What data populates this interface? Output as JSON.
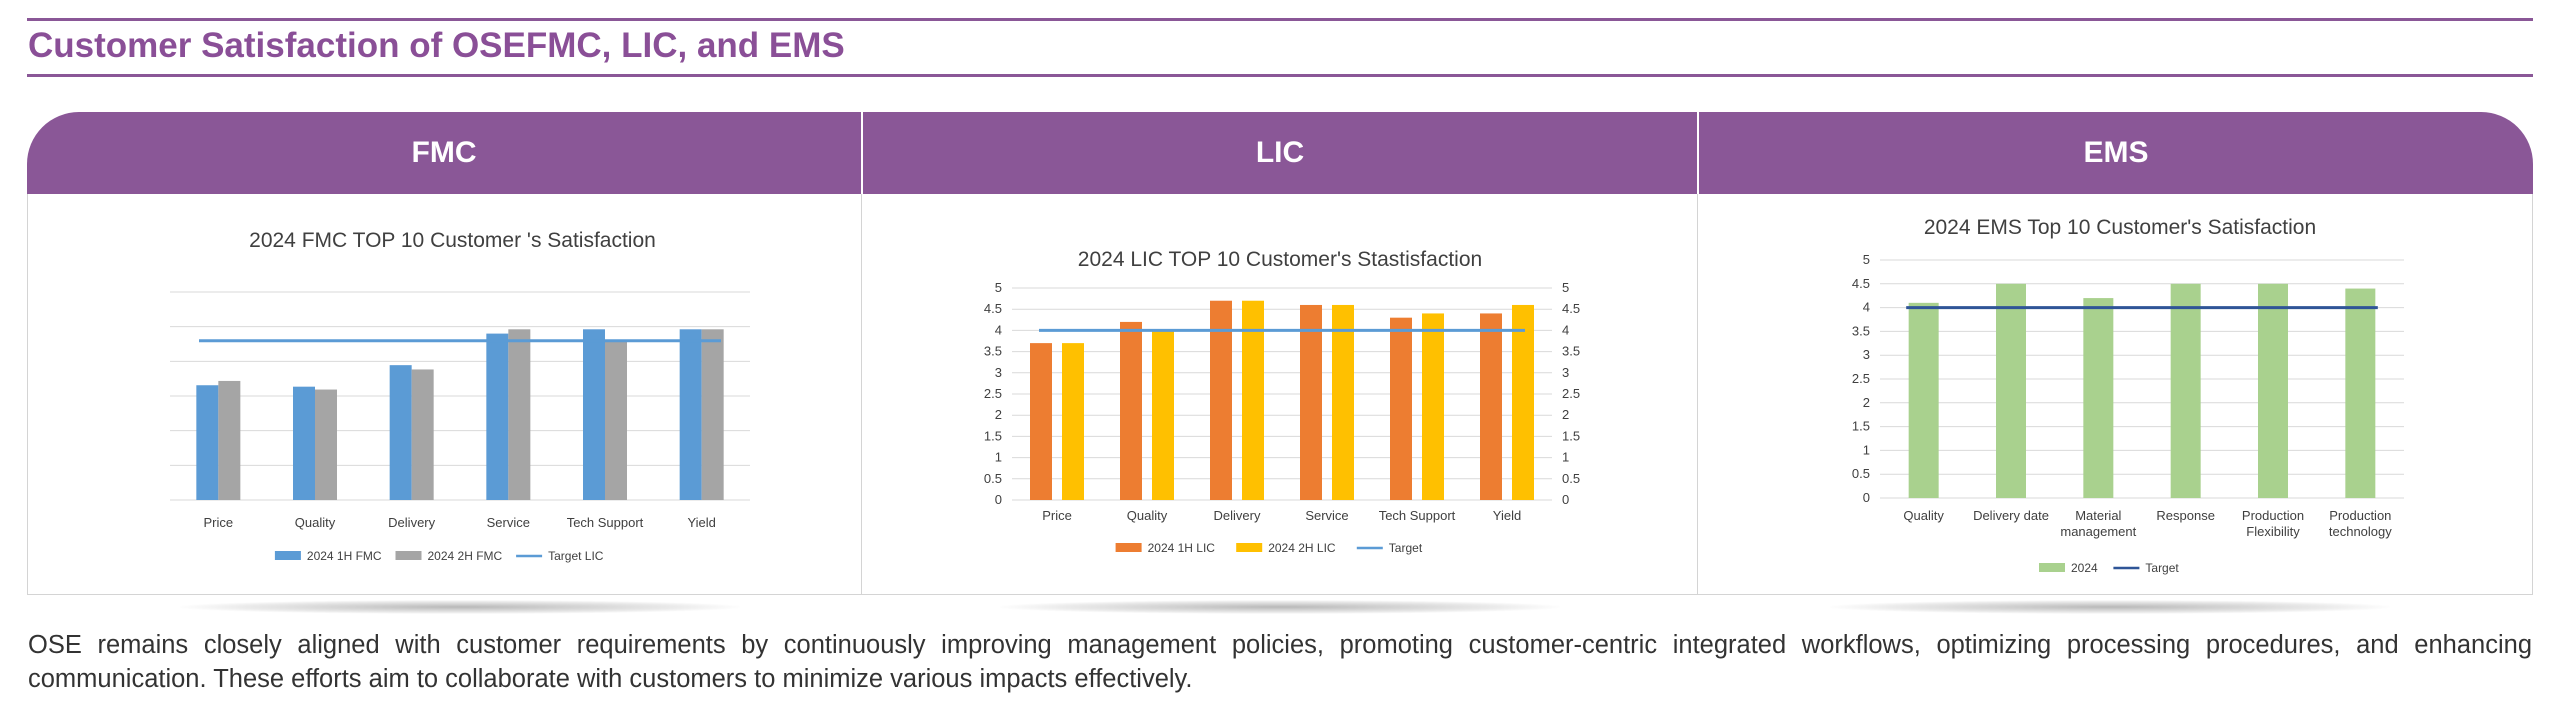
{
  "page": {
    "title": "Customer Satisfaction of OSEFMC, LIC, and EMS",
    "paragraph": "OSE remains closely aligned with customer requirements by continuously improving management policies, promoting customer-centric integrated workflows, optimizing processing procedures, and enhancing communication. These efforts aim to collaborate with customers to minimize various impacts effectively.",
    "headers": [
      "FMC",
      "LIC",
      "EMS"
    ],
    "accent_color": "#8a5797"
  },
  "chart_data": [
    {
      "type": "bar",
      "title": "2024 FMC TOP 10 Customer 's Satisfaction",
      "categories": [
        [
          "Price"
        ],
        [
          "Quality"
        ],
        [
          "Delivery"
        ],
        [
          "Service"
        ],
        [
          "Tech Support"
        ],
        [
          "Yield"
        ]
      ],
      "series": [
        {
          "name": "2024 1H FMC",
          "color": "#5b9bd5",
          "values": [
            4.1,
            4.08,
            4.38,
            4.82,
            4.88,
            4.88
          ]
        },
        {
          "name": "2024 2H FMC",
          "color": "#a5a5a5",
          "values": [
            4.16,
            4.04,
            4.32,
            4.88,
            4.72,
            4.88
          ]
        }
      ],
      "target": {
        "name": "Target LIC",
        "color": "#5b9bd5",
        "value": 4.72
      },
      "ylim": [
        2.5,
        5.4
      ],
      "y_ticks": [],
      "y_ticks_right": [],
      "grid": true,
      "legend": "bottom"
    },
    {
      "type": "bar",
      "title": "2024 LIC TOP 10 Customer's Stastisfaction",
      "categories": [
        [
          "Price"
        ],
        [
          "Quality"
        ],
        [
          "Delivery"
        ],
        [
          "Service"
        ],
        [
          "Tech Support"
        ],
        [
          "Yield"
        ]
      ],
      "series": [
        {
          "name": "2024 1H LIC",
          "color": "#ed7d31",
          "values": [
            3.7,
            4.2,
            4.7,
            4.6,
            4.3,
            4.4
          ]
        },
        {
          "name": "2024 2H LIC",
          "color": "#ffc000",
          "values": [
            3.7,
            4.0,
            4.7,
            4.6,
            4.4,
            4.6
          ]
        }
      ],
      "target": {
        "name": "Target",
        "color": "#5b9bd5",
        "value": 4.0
      },
      "ylim": [
        0,
        5
      ],
      "y_ticks": [
        "0",
        "0.5",
        "1",
        "1.5",
        "2",
        "2.5",
        "3",
        "3.5",
        "4",
        "4.5",
        "5"
      ],
      "y_ticks_right": [
        "0",
        "0.5",
        "1",
        "1.5",
        "2",
        "2.5",
        "3",
        "3.5",
        "4",
        "4.5",
        "5"
      ],
      "grid": true,
      "legend": "bottom"
    },
    {
      "type": "bar",
      "title": "2024 EMS Top 10 Customer's Satisfaction",
      "categories": [
        [
          "Quality"
        ],
        [
          "Delivery date"
        ],
        [
          "Material",
          "management"
        ],
        [
          "Response"
        ],
        [
          "Production",
          "Flexibility"
        ],
        [
          "Production",
          "technology"
        ]
      ],
      "series": [
        {
          "name": "2024",
          "color": "#a9d18e",
          "values": [
            4.1,
            4.5,
            4.2,
            4.5,
            4.5,
            4.4
          ]
        }
      ],
      "target": {
        "name": "Target",
        "color": "#2f5597",
        "value": 4.0
      },
      "ylim": [
        0,
        5
      ],
      "y_ticks": [
        "0",
        "0.5",
        "1",
        "1.5",
        "2",
        "2.5",
        "3",
        "3.5",
        "4",
        "4.5",
        "5"
      ],
      "y_ticks_right": [],
      "grid": true,
      "legend": "bottom"
    }
  ]
}
